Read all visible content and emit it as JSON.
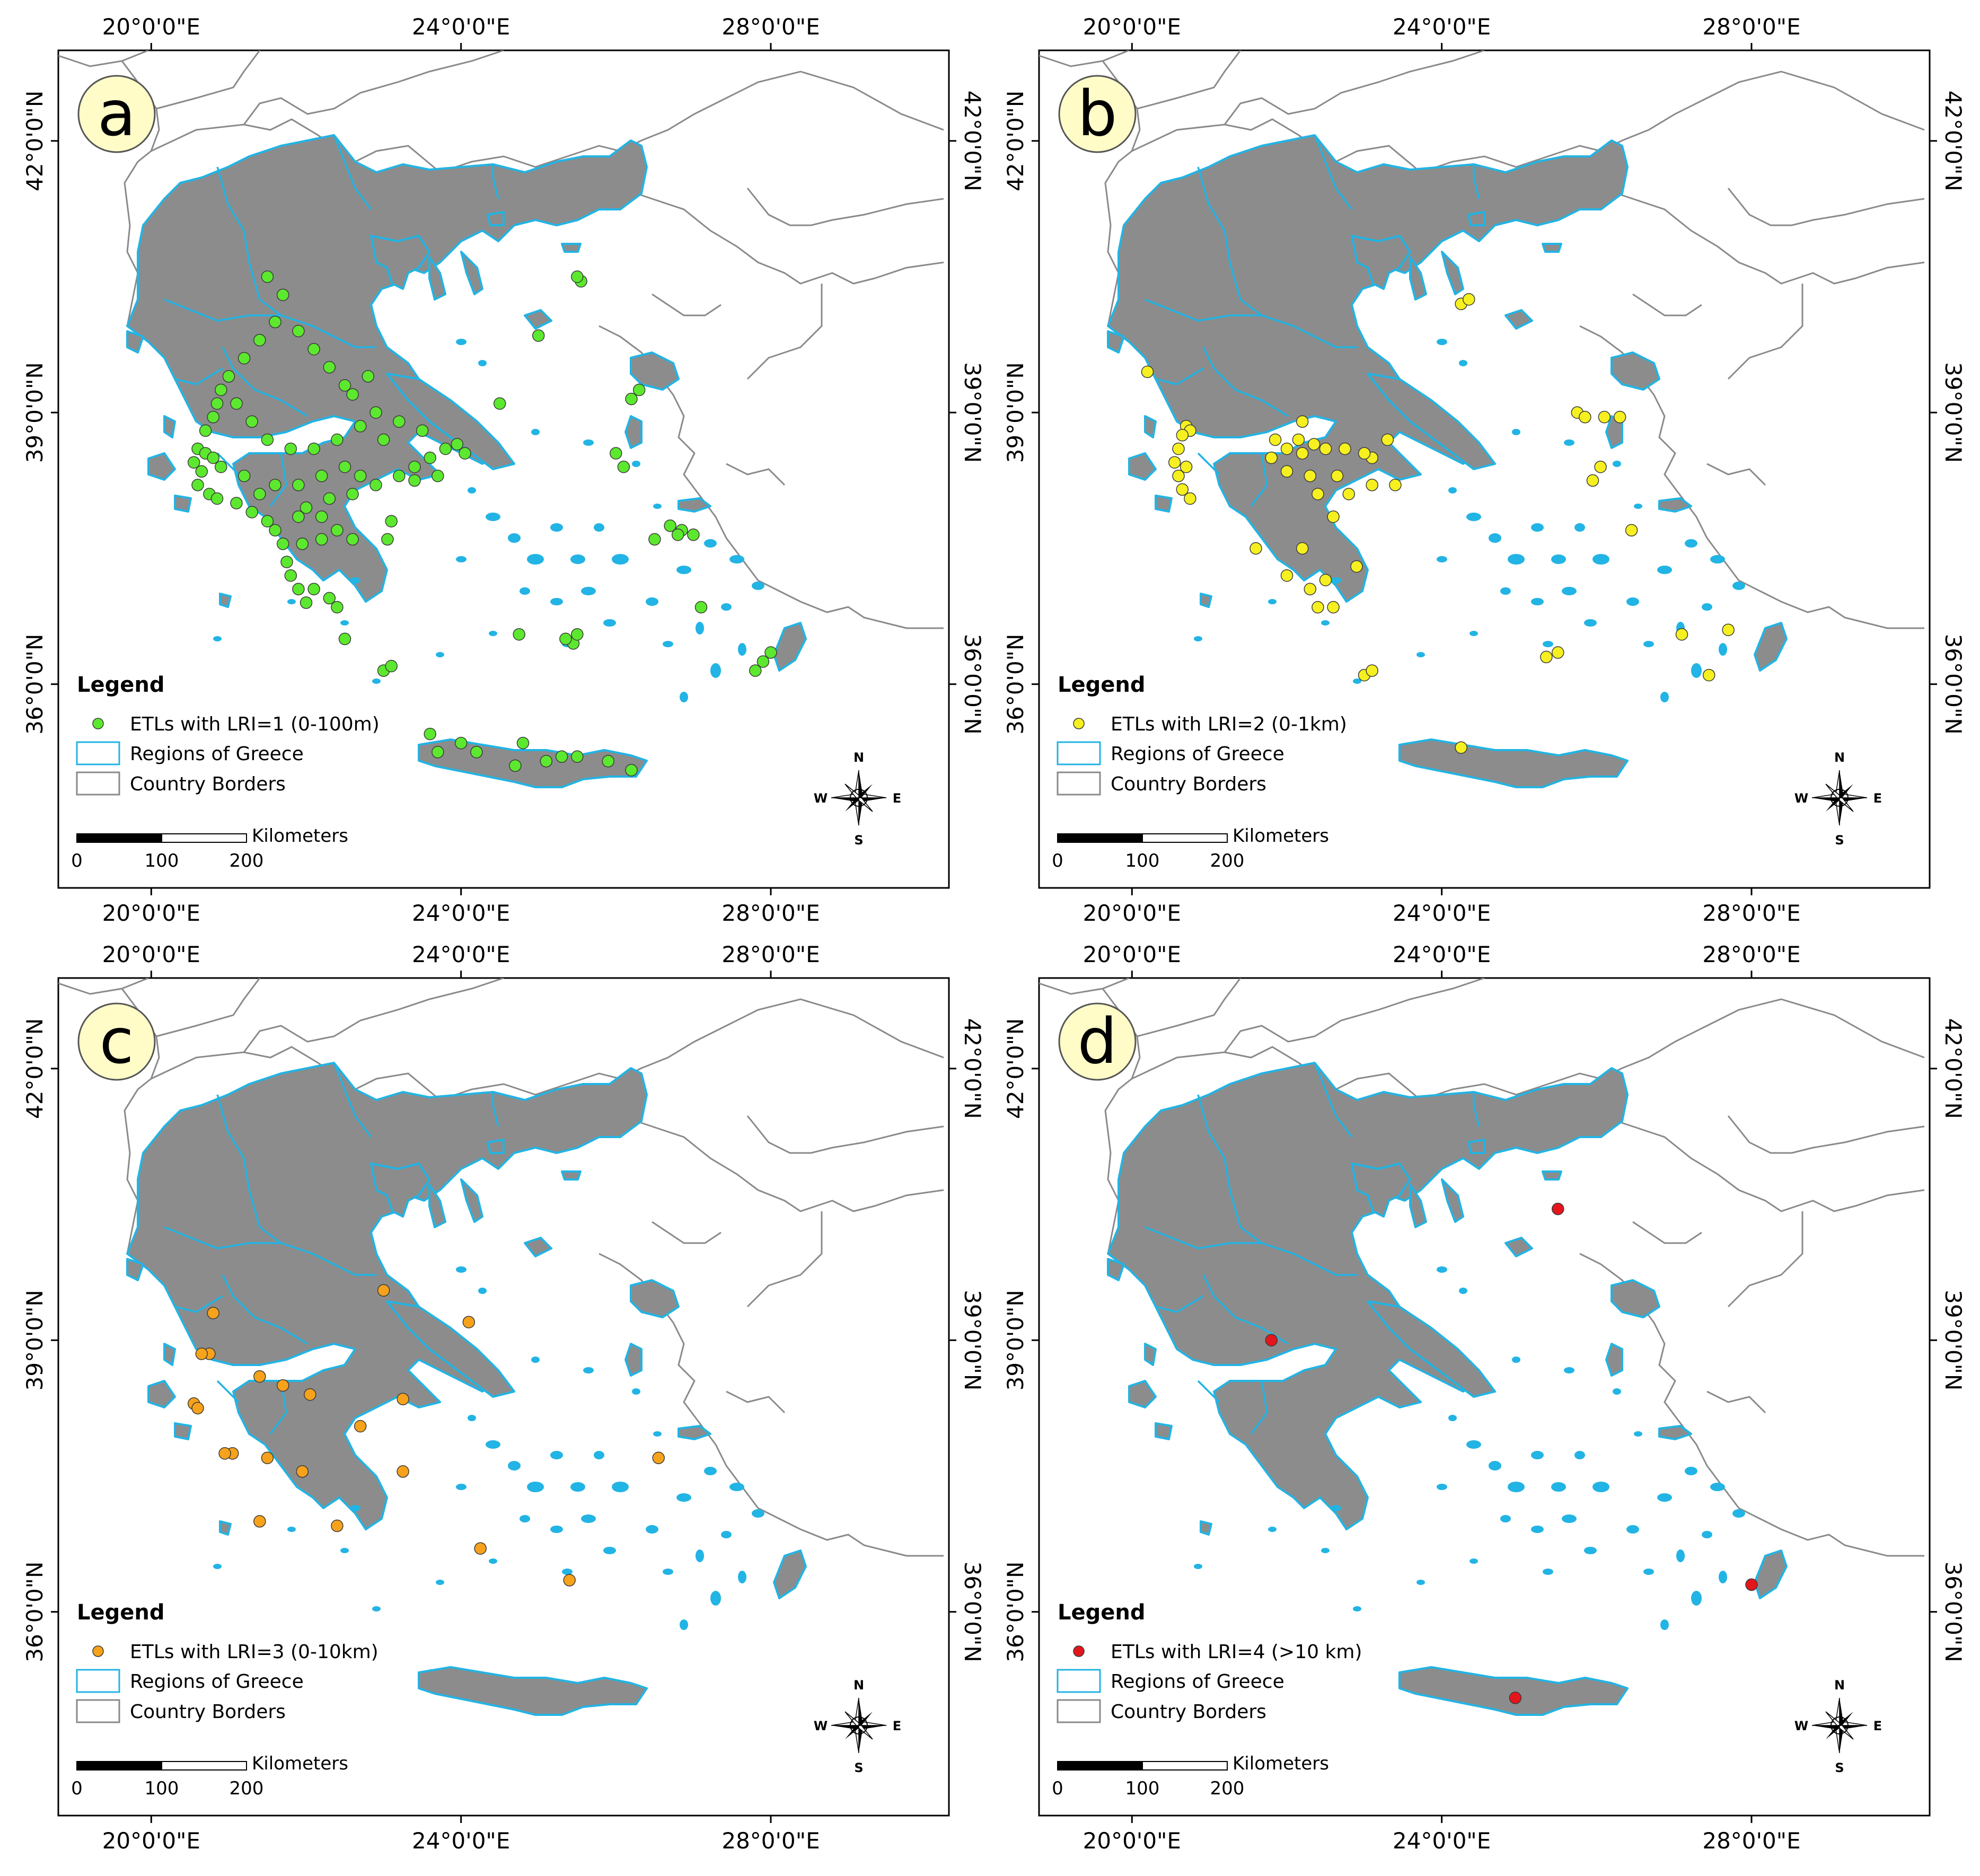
{
  "figure": {
    "panels": [
      {
        "letter": "a",
        "tick_top": [
          "20°0'0\"E",
          "24°0'0\"E",
          "28°0'0\"E"
        ],
        "tick_bottom": [
          "20°0'0\"E",
          "24°0'0\"E",
          "28°0'0\"E"
        ],
        "tick_left": [
          "42°0'0\"N",
          "39°0'0\"N",
          "36°0'0\"N"
        ],
        "tick_right": [
          "42°0'0\"N",
          "39°0'0\"N",
          "36°0'0\"N"
        ],
        "legend": {
          "title": "Legend",
          "point_label": "ETLs with LRI=1 (0-100m)",
          "point_color": "#5ce82e",
          "regions_label": "Regions of Greece",
          "borders_label": "Country Borders"
        },
        "scale": {
          "unit": "Kilometers",
          "labels": [
            "0",
            "100",
            "200"
          ]
        },
        "compass": {
          "n": "N",
          "s": "S",
          "e": "E",
          "w": "W"
        },
        "points": [
          [
            20.9,
            39.25
          ],
          [
            20.85,
            39.1
          ],
          [
            20.8,
            38.95
          ],
          [
            20.7,
            38.8
          ],
          [
            20.6,
            38.6
          ],
          [
            20.7,
            38.55
          ],
          [
            20.8,
            38.5
          ],
          [
            20.9,
            38.4
          ],
          [
            20.55,
            38.45
          ],
          [
            20.65,
            38.35
          ],
          [
            20.6,
            38.2
          ],
          [
            20.75,
            38.1
          ],
          [
            20.85,
            38.05
          ],
          [
            21.1,
            38.0
          ],
          [
            21.3,
            37.9
          ],
          [
            21.5,
            37.8
          ],
          [
            21.6,
            37.7
          ],
          [
            21.7,
            37.55
          ],
          [
            21.75,
            37.35
          ],
          [
            21.8,
            37.2
          ],
          [
            21.9,
            37.05
          ],
          [
            22.0,
            36.9
          ],
          [
            22.1,
            37.05
          ],
          [
            22.3,
            36.95
          ],
          [
            22.4,
            36.85
          ],
          [
            21.95,
            37.55
          ],
          [
            22.2,
            37.6
          ],
          [
            22.4,
            37.7
          ],
          [
            22.6,
            37.6
          ],
          [
            22.0,
            37.95
          ],
          [
            22.3,
            38.05
          ],
          [
            22.6,
            38.1
          ],
          [
            22.9,
            38.2
          ],
          [
            23.2,
            38.3
          ],
          [
            23.4,
            38.4
          ],
          [
            23.6,
            38.5
          ],
          [
            23.8,
            38.6
          ],
          [
            23.5,
            38.8
          ],
          [
            23.2,
            38.9
          ],
          [
            22.9,
            39.0
          ],
          [
            22.7,
            38.85
          ],
          [
            22.4,
            38.7
          ],
          [
            22.1,
            38.6
          ],
          [
            21.8,
            38.6
          ],
          [
            21.5,
            38.7
          ],
          [
            21.3,
            38.9
          ],
          [
            21.1,
            39.1
          ],
          [
            21.0,
            39.4
          ],
          [
            21.2,
            39.6
          ],
          [
            21.4,
            39.8
          ],
          [
            21.6,
            40.0
          ],
          [
            21.7,
            40.3
          ],
          [
            21.5,
            40.5
          ],
          [
            21.9,
            39.9
          ],
          [
            22.1,
            39.7
          ],
          [
            22.3,
            39.5
          ],
          [
            22.5,
            39.3
          ],
          [
            22.8,
            39.4
          ],
          [
            22.6,
            39.2
          ],
          [
            23.0,
            38.7
          ],
          [
            22.7,
            38.3
          ],
          [
            22.5,
            38.4
          ],
          [
            22.2,
            38.3
          ],
          [
            21.9,
            38.2
          ],
          [
            21.6,
            38.2
          ],
          [
            21.4,
            38.1
          ],
          [
            21.2,
            38.3
          ],
          [
            21.9,
            37.85
          ],
          [
            22.2,
            37.85
          ],
          [
            23.05,
            37.6
          ],
          [
            23.1,
            37.8
          ],
          [
            23.4,
            38.25
          ],
          [
            23.7,
            38.3
          ],
          [
            23.95,
            38.65
          ],
          [
            24.05,
            38.55
          ],
          [
            23.0,
            36.15
          ],
          [
            23.1,
            36.2
          ],
          [
            22.5,
            36.5
          ],
          [
            25.55,
            40.45
          ],
          [
            25.5,
            40.5
          ],
          [
            25.0,
            39.85
          ],
          [
            24.5,
            39.1
          ],
          [
            26.3,
            39.25
          ],
          [
            26.2,
            39.15
          ],
          [
            26.0,
            38.55
          ],
          [
            26.1,
            38.4
          ],
          [
            26.7,
            37.75
          ],
          [
            26.85,
            37.7
          ],
          [
            27.0,
            37.65
          ],
          [
            26.5,
            37.6
          ],
          [
            26.8,
            37.65
          ],
          [
            25.45,
            36.45
          ],
          [
            25.35,
            36.5
          ],
          [
            25.5,
            36.55
          ],
          [
            24.75,
            36.55
          ],
          [
            27.1,
            36.85
          ],
          [
            27.9,
            36.25
          ],
          [
            27.8,
            36.15
          ],
          [
            28.0,
            36.35
          ],
          [
            23.6,
            35.45
          ],
          [
            23.7,
            35.25
          ],
          [
            24.2,
            35.25
          ],
          [
            24.7,
            35.1
          ],
          [
            25.1,
            35.15
          ],
          [
            25.3,
            35.2
          ],
          [
            25.5,
            35.2
          ],
          [
            25.9,
            35.15
          ],
          [
            26.2,
            35.05
          ],
          [
            24.0,
            35.35
          ],
          [
            24.8,
            35.35
          ]
        ]
      },
      {
        "letter": "b",
        "tick_top": [
          "20°0'0\"E",
          "24°0'0\"E",
          "28°0'0\"E"
        ],
        "tick_bottom": [
          "20°0'0\"E",
          "24°0'0\"E",
          "28°0'0\"E"
        ],
        "tick_left": [
          "42°0'0\"N",
          "39°0'0\"N",
          "36°0'0\"N"
        ],
        "tick_right": [
          "42°0'0\"N",
          "39°0'0\"N",
          "36°0'0\"N"
        ],
        "legend": {
          "title": "Legend",
          "point_label": "ETLs with LRI=2 (0-1km)",
          "point_color": "#f6f020",
          "regions_label": "Regions of Greece",
          "borders_label": "Country Borders"
        },
        "scale": {
          "unit": "Kilometers",
          "labels": [
            "0",
            "100",
            "200"
          ]
        },
        "compass": {
          "n": "N",
          "s": "S",
          "e": "E",
          "w": "W"
        },
        "points": [
          [
            20.2,
            39.45
          ],
          [
            20.7,
            38.85
          ],
          [
            20.75,
            38.8
          ],
          [
            20.65,
            38.75
          ],
          [
            20.6,
            38.6
          ],
          [
            20.55,
            38.45
          ],
          [
            20.7,
            38.4
          ],
          [
            20.6,
            38.3
          ],
          [
            20.65,
            38.15
          ],
          [
            20.75,
            38.05
          ],
          [
            21.85,
            38.7
          ],
          [
            22.0,
            38.6
          ],
          [
            22.2,
            38.55
          ],
          [
            22.5,
            38.6
          ],
          [
            22.75,
            38.6
          ],
          [
            23.1,
            38.5
          ],
          [
            23.4,
            38.2
          ],
          [
            23.1,
            38.2
          ],
          [
            22.8,
            38.1
          ],
          [
            22.4,
            38.1
          ],
          [
            22.3,
            38.3
          ],
          [
            22.0,
            38.35
          ],
          [
            21.8,
            38.5
          ],
          [
            22.6,
            37.85
          ],
          [
            22.2,
            37.5
          ],
          [
            21.6,
            37.5
          ],
          [
            22.0,
            37.2
          ],
          [
            22.3,
            37.05
          ],
          [
            22.5,
            37.15
          ],
          [
            22.9,
            37.3
          ],
          [
            22.4,
            36.85
          ],
          [
            22.6,
            36.85
          ],
          [
            23.0,
            36.1
          ],
          [
            23.1,
            36.15
          ],
          [
            24.25,
            40.2
          ],
          [
            24.35,
            40.25
          ],
          [
            25.75,
            39.0
          ],
          [
            26.1,
            38.95
          ],
          [
            26.3,
            38.95
          ],
          [
            25.85,
            38.95
          ],
          [
            26.05,
            38.4
          ],
          [
            25.95,
            38.25
          ],
          [
            26.45,
            37.7
          ],
          [
            27.1,
            36.55
          ],
          [
            27.7,
            36.6
          ],
          [
            27.45,
            36.1
          ],
          [
            25.35,
            36.3
          ],
          [
            25.5,
            36.35
          ],
          [
            24.25,
            35.3
          ],
          [
            22.35,
            38.65
          ],
          [
            23.0,
            38.55
          ],
          [
            22.65,
            38.3
          ],
          [
            22.2,
            38.9
          ],
          [
            23.3,
            38.7
          ],
          [
            22.15,
            38.7
          ]
        ]
      },
      {
        "letter": "c",
        "tick_top": [
          "20°0'0\"E",
          "24°0'0\"E",
          "28°0'0\"E"
        ],
        "tick_bottom": [
          "20°0'0\"E",
          "24°0'0\"E",
          "28°0'0\"E"
        ],
        "tick_left": [
          "42°0'0\"N",
          "39°0'0\"N",
          "36°0'0\"N"
        ],
        "tick_right": [
          "42°0'0\"N",
          "39°0'0\"N",
          "36°0'0\"N"
        ],
        "legend": {
          "title": "Legend",
          "point_label": "ETLs with LRI=3 (0-10km)",
          "point_color": "#f7a21b",
          "regions_label": "Regions of Greece",
          "borders_label": "Country Borders"
        },
        "scale": {
          "unit": "Kilometers",
          "labels": [
            "0",
            "100",
            "200"
          ]
        },
        "compass": {
          "n": "N",
          "s": "S",
          "e": "E",
          "w": "W"
        },
        "points": [
          [
            20.8,
            39.3
          ],
          [
            23.0,
            39.55
          ],
          [
            24.1,
            39.2
          ],
          [
            20.75,
            38.85
          ],
          [
            20.65,
            38.85
          ],
          [
            21.4,
            38.6
          ],
          [
            21.7,
            38.5
          ],
          [
            22.05,
            38.4
          ],
          [
            23.25,
            38.35
          ],
          [
            20.55,
            38.3
          ],
          [
            20.6,
            38.25
          ],
          [
            22.7,
            38.05
          ],
          [
            21.05,
            37.75
          ],
          [
            20.95,
            37.75
          ],
          [
            21.5,
            37.7
          ],
          [
            21.95,
            37.55
          ],
          [
            23.25,
            37.55
          ],
          [
            21.4,
            37.0
          ],
          [
            22.4,
            36.95
          ],
          [
            24.25,
            36.7
          ],
          [
            26.55,
            37.7
          ],
          [
            25.4,
            36.35
          ]
        ]
      },
      {
        "letter": "d",
        "tick_top": [
          "20°0'0\"E",
          "24°0'0\"E",
          "28°0'0\"E"
        ],
        "tick_bottom": [
          "20°0'0\"E",
          "24°0'0\"E",
          "28°0'0\"E"
        ],
        "tick_left": [
          "42°0'0\"N",
          "39°0'0\"N",
          "36°0'0\"N"
        ],
        "tick_right": [
          "42°0'0\"N",
          "39°0'0\"N",
          "36°0'0\"N"
        ],
        "legend": {
          "title": "Legend",
          "point_label": "ETLs with LRI=4 (>10 km)",
          "point_color": "#e4161c",
          "regions_label": "Regions of Greece",
          "borders_label": "Country Borders"
        },
        "scale": {
          "unit": "Kilometers",
          "labels": [
            "0",
            "100",
            "200"
          ]
        },
        "compass": {
          "n": "N",
          "s": "S",
          "e": "E",
          "w": "W"
        },
        "points": [
          [
            25.5,
            40.45
          ],
          [
            21.8,
            39.0
          ],
          [
            28.0,
            36.3
          ],
          [
            24.95,
            35.05
          ]
        ]
      }
    ]
  },
  "colors": {
    "land": "#8c8c8c",
    "region_outline": "#22b4e4",
    "country_border": "#8a8a8a",
    "panel_letter_fill": "#fffcc8"
  }
}
